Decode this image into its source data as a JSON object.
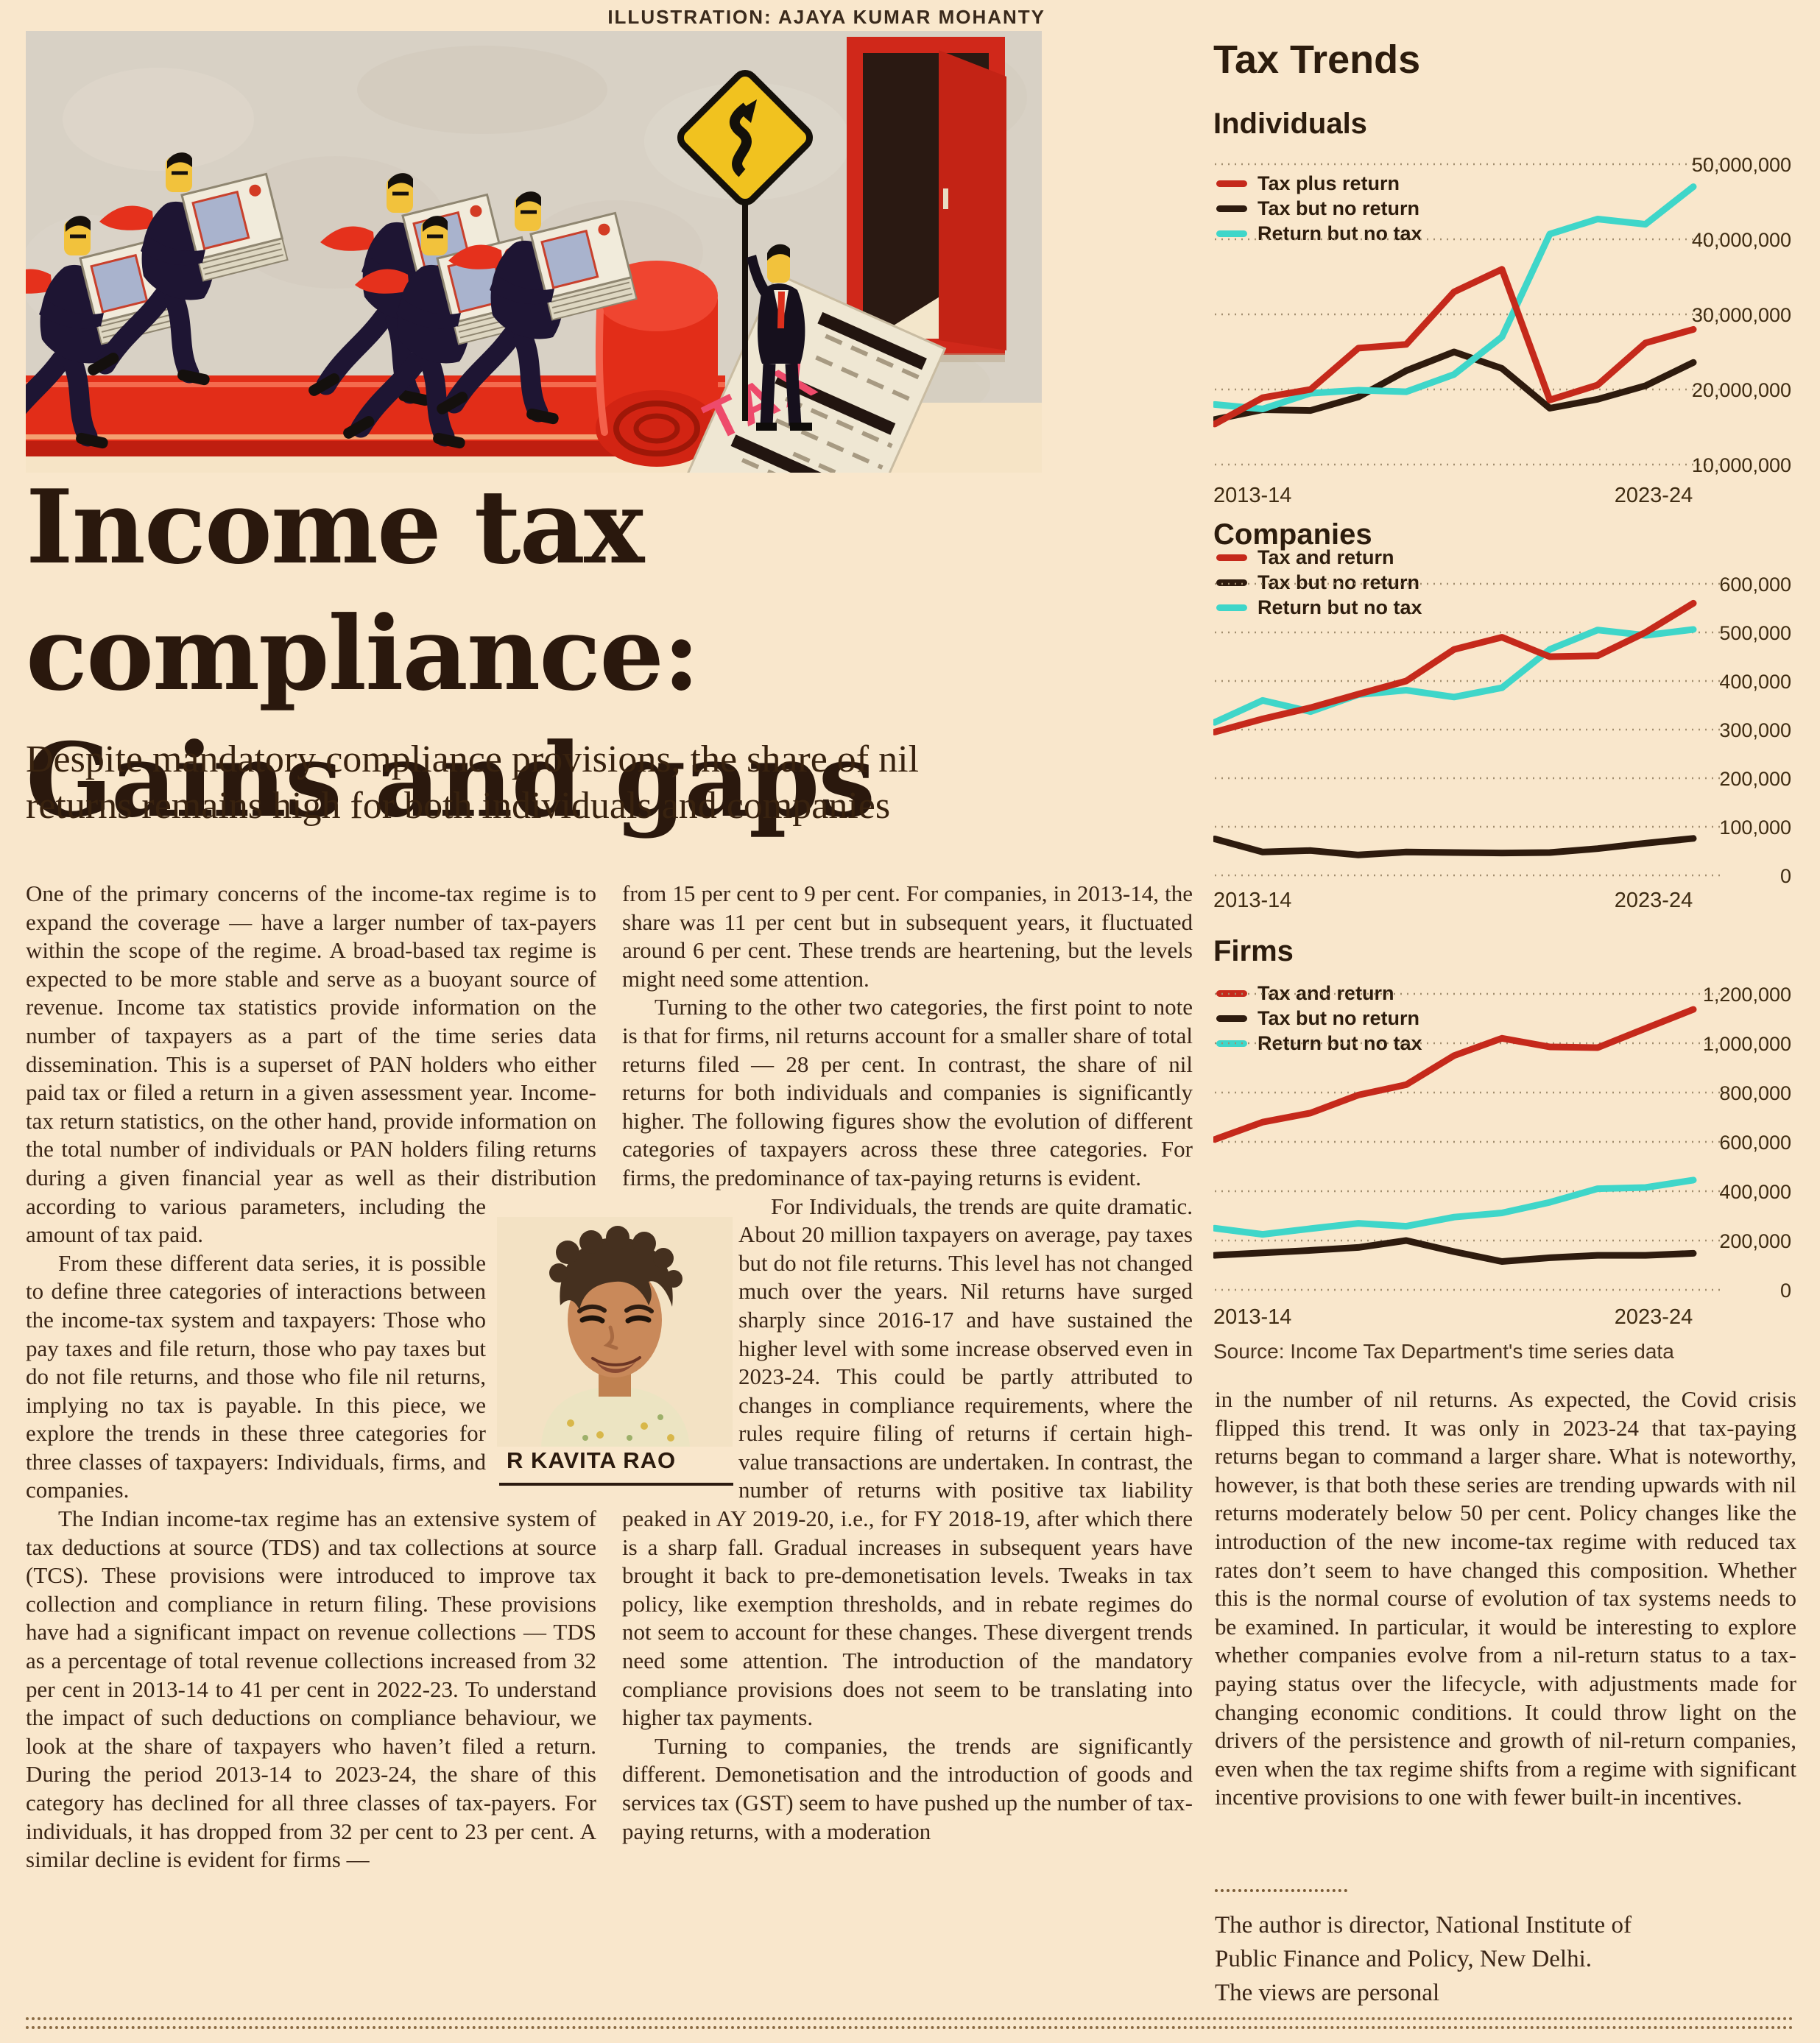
{
  "page": {
    "credit": "ILLUSTRATION: AJAYA KUMAR MOHANTY",
    "colors": {
      "background": "#f9e7cc",
      "headline_text": "#2a180d",
      "body_text": "#3a2516",
      "carpet_red": "#e22d18",
      "sign_yellow": "#f1c21f",
      "suit_dark": "#1e1533"
    }
  },
  "headline": {
    "line1": "Income tax compliance:",
    "line2": "Gains and gaps"
  },
  "standfirst": {
    "line1": "Despite mandatory compliance provisions, the share of nil",
    "line2": "returns remains high for both individuals and companies"
  },
  "photo": {
    "caption": "R KAVITA RAO"
  },
  "body": {
    "col1": [
      "One of the primary concerns of the income-tax regime is to expand the coverage — have a larger number of tax-payers within the scope of the regime. A broad-based tax regime is expected to be more stable and serve as a buoyant source of revenue. Income tax statistics provide information on the number of taxpayers as a part of the time series data dissemination. This is a superset of PAN holders who either paid tax or filed a return in a given assessment year. Income-tax return statistics, on the other hand, provide information on the total number of individuals or PAN holders filing returns during a given financial year as well as their distribution according to various parameters, including the amount of tax paid.",
      "From these different data series, it is possible to define three categories of interactions between the income-tax system and taxpayers: Those who pay taxes and file return, those who pay taxes but do not file returns, and those who file nil returns, implying no tax is payable. In this piece, we explore the trends in these three categories for three classes of taxpayers: Individuals, firms, and companies.",
      "The Indian income-tax regime has an extensive system of tax deductions at source (TDS) and tax collections at source (TCS). These provisions were introduced to improve tax collection and compliance in return filing. These provisions have had a significant impact on revenue collections — TDS as a percentage of total revenue collections increased from 32 per cent in 2013-14 to 41 per cent in 2022-23. To understand the impact of such deductions on compliance behaviour, we look at the share of taxpayers who haven’t filed a return. During the period 2013-14 to 2023-24, the share of this category has declined for all three classes of tax-payers. For individuals, it has dropped from 32 per cent to 23 per cent. A similar decline is evident for firms —"
    ],
    "col2": [
      "from 15 per cent to 9 per cent. For companies, in 2013-14, the share was 11 per cent but in subsequent years, it fluctuated around 6 per cent. These trends are heartening, but the levels might need some attention.",
      "Turning to the other two categories, the first point to note is that for firms, nil returns account for a smaller share of total returns filed — 28 per cent. In contrast, the share of nil returns for both individuals and companies is significantly higher. The following figures show the evolution of different categories of taxpayers across these three categories. For firms, the predominance of tax-paying returns is evident.",
      "For Individuals, the trends are quite dramatic. About 20 million taxpayers on average, pay taxes but do not file returns. This level has not changed much over the years. Nil returns have surged sharply since 2016-17 and have sustained the higher level with some increase observed even in 2023-24. This could be partly attributed to changes in compliance requirements, where the rules require filing of returns if certain high-value transactions are undertaken. In contrast, the number of returns with positive tax liability peaked in AY 2019-20, i.e., for FY 2018-19, after which there is a sharp fall. Gradual increases in subsequent years have brought it back to pre-demonetisation levels. Tweaks in tax policy, like exemption thresholds, and in rebate regimes do not seem to account for these changes. These divergent trends need some attention. The introduction of the mandatory compliance provisions does not seem to be translating into higher tax payments.",
      "Turning to companies, the trends are significantly different. Demonetisation and the introduction of goods and services tax (GST) seem to have pushed up the number of tax-paying returns, with a moderation"
    ],
    "col3": [
      "in the number of nil returns. As expected, the Covid crisis flipped this trend. It was only in 2023-24 that tax-paying returns began to command a larger share. What is noteworthy, however, is that both these series are trending upwards with nil returns moderately below 50 per cent. Policy changes like the introduction of the new income-tax regime with reduced tax rates don’t seem to have changed this composition. Whether this is the normal course of evolution of tax systems needs to be examined. In particular, it would be interesting to explore whether companies evolve from a nil-return status to a tax-paying status over the lifecycle, with adjustments made for changing economic conditions. It could throw light on the drivers of the persistence and growth of nil-return companies, even when the tax regime shifts from a regime with significant incentive provisions to one with fewer built-in incentives."
    ],
    "footer_lines": [
      "The author is director, National Institute of",
      "Public Finance and Policy, New Delhi.",
      "The views are personal"
    ]
  },
  "tax_trends": {
    "section_title": "Tax Trends",
    "source": "Source: Income Tax Department's time series data"
  },
  "chart_data": [
    {
      "type": "line",
      "title": "Individuals",
      "x": [
        "2013-14",
        "2014-15",
        "2015-16",
        "2016-17",
        "2017-18",
        "2018-19",
        "2019-20",
        "2020-21",
        "2021-22",
        "2022-23",
        "2023-24"
      ],
      "x_axis_labels": [
        "2013-14",
        "2023-24"
      ],
      "ylim": [
        10000000,
        50000000
      ],
      "ytick_labels": [
        "50,000,000",
        "40,000,000",
        "30,000,000",
        "20,000,000",
        "10,000,000"
      ],
      "grid": "horizontal-dotted",
      "legend_position": "top-left-overlay",
      "series": [
        {
          "name": "Tax plus return",
          "color": "#c5291b",
          "values": [
            15400000,
            18900000,
            20000000,
            25500000,
            26000000,
            33000000,
            36000000,
            18600000,
            20600000,
            26200000,
            28000000
          ]
        },
        {
          "name": "Tax but no return",
          "color": "#2e1b0e",
          "values": [
            16000000,
            17300000,
            17200000,
            19000000,
            22500000,
            25000000,
            22800000,
            17500000,
            18700000,
            20500000,
            23600000
          ]
        },
        {
          "name": "Return but no tax",
          "color": "#3fd6c9",
          "values": [
            18000000,
            17400000,
            19500000,
            19900000,
            19700000,
            22000000,
            27000000,
            40700000,
            42700000,
            42000000,
            47000000
          ]
        }
      ]
    },
    {
      "type": "line",
      "title": "Companies",
      "x": [
        "2013-14",
        "2014-15",
        "2015-16",
        "2016-17",
        "2017-18",
        "2018-19",
        "2019-20",
        "2020-21",
        "2021-22",
        "2022-23",
        "2023-24"
      ],
      "x_axis_labels": [
        "2013-14",
        "2023-24"
      ],
      "ylim": [
        0,
        600000
      ],
      "ytick_labels": [
        "600,000",
        "500,000",
        "400,000",
        "300,000",
        "200,000",
        "100,000",
        "0"
      ],
      "grid": "horizontal-dotted",
      "legend_position": "top-left-overlay",
      "series": [
        {
          "name": "Tax and return",
          "color": "#c5291b",
          "values": [
            295000,
            322000,
            345000,
            373000,
            400000,
            465000,
            490000,
            450000,
            452000,
            500000,
            560000
          ]
        },
        {
          "name": "Tax but no return",
          "color": "#2e1b0e",
          "values": [
            75000,
            48000,
            51000,
            42000,
            48000,
            47000,
            46000,
            47000,
            55000,
            66000,
            76000
          ]
        },
        {
          "name": "Return but no tax",
          "color": "#3fd6c9",
          "values": [
            315000,
            360000,
            337000,
            372000,
            381000,
            367000,
            386000,
            465000,
            505000,
            494000,
            506000
          ]
        }
      ]
    },
    {
      "type": "line",
      "title": "Firms",
      "x": [
        "2013-14",
        "2014-15",
        "2015-16",
        "2016-17",
        "2017-18",
        "2018-19",
        "2019-20",
        "2020-21",
        "2021-22",
        "2022-23",
        "2023-24"
      ],
      "x_axis_labels": [
        "2013-14",
        "2023-24"
      ],
      "ylim": [
        0,
        1200000
      ],
      "ytick_labels": [
        "1,200,000",
        "1,000,000",
        "800,000",
        "600,000",
        "400,000",
        "200,000",
        "0"
      ],
      "grid": "horizontal-dotted",
      "legend_position": "top-left-overlay",
      "series": [
        {
          "name": "Tax and return",
          "color": "#c5291b",
          "values": [
            610000,
            680000,
            717000,
            790000,
            832000,
            950000,
            1020000,
            985000,
            982000,
            1060000,
            1137000
          ]
        },
        {
          "name": "Tax but no return",
          "color": "#2e1b0e",
          "values": [
            140000,
            150000,
            160000,
            172000,
            200000,
            155000,
            115000,
            130000,
            140000,
            140000,
            148000
          ]
        },
        {
          "name": "Return but no tax",
          "color": "#3fd6c9",
          "values": [
            250000,
            225000,
            248000,
            270000,
            258000,
            295000,
            312000,
            355000,
            410000,
            415000,
            445000
          ]
        }
      ]
    }
  ]
}
